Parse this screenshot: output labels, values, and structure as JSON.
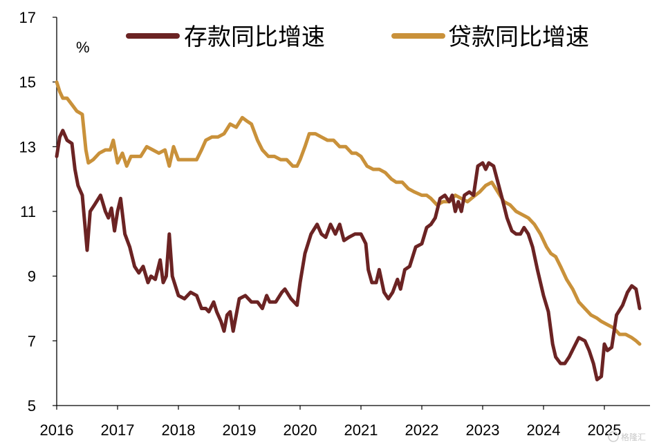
{
  "chart_data": {
    "type": "line",
    "unit": "%",
    "ylim": [
      5,
      17
    ],
    "yticks": [
      5,
      7,
      9,
      11,
      13,
      15,
      17
    ],
    "xlim": [
      2016.0,
      2025.75
    ],
    "xticks": [
      2016,
      2017,
      2018,
      2019,
      2020,
      2021,
      2022,
      2023,
      2024,
      2025
    ],
    "xtick_labels": [
      "2016",
      "2017",
      "2018",
      "2019",
      "2020",
      "2021",
      "2022",
      "2023",
      "2024",
      "2025"
    ],
    "grid": false,
    "legend_position": "top",
    "series": [
      {
        "name": "存款同比增速",
        "color": "#6b2323",
        "points": [
          [
            2016.0,
            12.7
          ],
          [
            2016.05,
            13.3
          ],
          [
            2016.1,
            13.5
          ],
          [
            2016.17,
            13.2
          ],
          [
            2016.25,
            13.1
          ],
          [
            2016.3,
            12.3
          ],
          [
            2016.35,
            11.8
          ],
          [
            2016.42,
            11.5
          ],
          [
            2016.5,
            9.8
          ],
          [
            2016.55,
            11.0
          ],
          [
            2016.62,
            11.2
          ],
          [
            2016.72,
            11.5
          ],
          [
            2016.8,
            11.0
          ],
          [
            2016.85,
            10.8
          ],
          [
            2016.9,
            11.1
          ],
          [
            2016.95,
            10.4
          ],
          [
            2017.0,
            11.0
          ],
          [
            2017.05,
            11.4
          ],
          [
            2017.12,
            10.3
          ],
          [
            2017.2,
            9.9
          ],
          [
            2017.28,
            9.3
          ],
          [
            2017.35,
            9.1
          ],
          [
            2017.42,
            9.3
          ],
          [
            2017.5,
            8.8
          ],
          [
            2017.55,
            9.0
          ],
          [
            2017.62,
            8.9
          ],
          [
            2017.7,
            9.5
          ],
          [
            2017.75,
            8.8
          ],
          [
            2017.8,
            9.0
          ],
          [
            2017.85,
            10.3
          ],
          [
            2017.9,
            9.0
          ],
          [
            2018.0,
            8.4
          ],
          [
            2018.1,
            8.3
          ],
          [
            2018.2,
            8.5
          ],
          [
            2018.3,
            8.4
          ],
          [
            2018.38,
            8.0
          ],
          [
            2018.45,
            8.0
          ],
          [
            2018.5,
            7.9
          ],
          [
            2018.58,
            8.2
          ],
          [
            2018.63,
            7.9
          ],
          [
            2018.7,
            7.6
          ],
          [
            2018.75,
            7.3
          ],
          [
            2018.8,
            7.8
          ],
          [
            2018.85,
            7.9
          ],
          [
            2018.9,
            7.3
          ],
          [
            2018.95,
            7.8
          ],
          [
            2019.0,
            8.3
          ],
          [
            2019.1,
            8.4
          ],
          [
            2019.2,
            8.2
          ],
          [
            2019.3,
            8.2
          ],
          [
            2019.38,
            8.0
          ],
          [
            2019.45,
            8.4
          ],
          [
            2019.5,
            8.2
          ],
          [
            2019.6,
            8.2
          ],
          [
            2019.7,
            8.5
          ],
          [
            2019.75,
            8.6
          ],
          [
            2019.85,
            8.3
          ],
          [
            2019.95,
            8.1
          ],
          [
            2020.0,
            8.8
          ],
          [
            2020.08,
            9.7
          ],
          [
            2020.18,
            10.3
          ],
          [
            2020.28,
            10.6
          ],
          [
            2020.35,
            10.3
          ],
          [
            2020.42,
            10.2
          ],
          [
            2020.5,
            10.6
          ],
          [
            2020.58,
            10.3
          ],
          [
            2020.65,
            10.6
          ],
          [
            2020.72,
            10.1
          ],
          [
            2020.8,
            10.2
          ],
          [
            2020.9,
            10.3
          ],
          [
            2021.0,
            10.3
          ],
          [
            2021.08,
            10.0
          ],
          [
            2021.12,
            9.2
          ],
          [
            2021.18,
            8.8
          ],
          [
            2021.25,
            8.8
          ],
          [
            2021.3,
            9.2
          ],
          [
            2021.38,
            8.5
          ],
          [
            2021.45,
            8.3
          ],
          [
            2021.52,
            8.5
          ],
          [
            2021.6,
            8.9
          ],
          [
            2021.65,
            8.6
          ],
          [
            2021.72,
            9.2
          ],
          [
            2021.8,
            9.3
          ],
          [
            2021.9,
            9.9
          ],
          [
            2022.0,
            10.0
          ],
          [
            2022.08,
            10.5
          ],
          [
            2022.15,
            10.6
          ],
          [
            2022.22,
            10.8
          ],
          [
            2022.3,
            11.4
          ],
          [
            2022.38,
            11.5
          ],
          [
            2022.45,
            11.3
          ],
          [
            2022.5,
            11.5
          ],
          [
            2022.55,
            11.0
          ],
          [
            2022.6,
            11.3
          ],
          [
            2022.65,
            11.0
          ],
          [
            2022.7,
            11.5
          ],
          [
            2022.78,
            11.6
          ],
          [
            2022.85,
            11.5
          ],
          [
            2022.92,
            12.4
          ],
          [
            2023.0,
            12.5
          ],
          [
            2023.05,
            12.3
          ],
          [
            2023.1,
            12.5
          ],
          [
            2023.18,
            12.4
          ],
          [
            2023.25,
            11.9
          ],
          [
            2023.32,
            11.4
          ],
          [
            2023.4,
            10.8
          ],
          [
            2023.48,
            10.4
          ],
          [
            2023.55,
            10.3
          ],
          [
            2023.62,
            10.3
          ],
          [
            2023.68,
            10.5
          ],
          [
            2023.75,
            10.3
          ],
          [
            2023.82,
            9.9
          ],
          [
            2023.9,
            9.2
          ],
          [
            2024.0,
            8.4
          ],
          [
            2024.08,
            7.9
          ],
          [
            2024.15,
            6.9
          ],
          [
            2024.2,
            6.5
          ],
          [
            2024.28,
            6.3
          ],
          [
            2024.35,
            6.3
          ],
          [
            2024.42,
            6.5
          ],
          [
            2024.5,
            6.8
          ],
          [
            2024.58,
            7.1
          ],
          [
            2024.68,
            7.0
          ],
          [
            2024.75,
            6.7
          ],
          [
            2024.82,
            6.3
          ],
          [
            2024.88,
            5.8
          ],
          [
            2024.95,
            5.9
          ],
          [
            2025.0,
            6.9
          ],
          [
            2025.05,
            6.7
          ],
          [
            2025.12,
            6.8
          ],
          [
            2025.2,
            7.8
          ],
          [
            2025.3,
            8.1
          ],
          [
            2025.38,
            8.5
          ],
          [
            2025.45,
            8.7
          ],
          [
            2025.52,
            8.6
          ],
          [
            2025.58,
            8.0
          ]
        ]
      },
      {
        "name": "贷款同比增速",
        "color": "#c9913a",
        "points": [
          [
            2016.0,
            15.0
          ],
          [
            2016.05,
            14.7
          ],
          [
            2016.1,
            14.5
          ],
          [
            2016.17,
            14.5
          ],
          [
            2016.25,
            14.3
          ],
          [
            2016.33,
            14.1
          ],
          [
            2016.42,
            14.0
          ],
          [
            2016.48,
            12.9
          ],
          [
            2016.52,
            12.5
          ],
          [
            2016.6,
            12.6
          ],
          [
            2016.7,
            12.8
          ],
          [
            2016.8,
            12.9
          ],
          [
            2016.88,
            12.9
          ],
          [
            2016.93,
            13.2
          ],
          [
            2017.0,
            12.5
          ],
          [
            2017.08,
            12.8
          ],
          [
            2017.15,
            12.4
          ],
          [
            2017.22,
            12.7
          ],
          [
            2017.3,
            12.7
          ],
          [
            2017.38,
            12.7
          ],
          [
            2017.48,
            13.0
          ],
          [
            2017.58,
            12.9
          ],
          [
            2017.68,
            12.8
          ],
          [
            2017.78,
            12.9
          ],
          [
            2017.85,
            12.4
          ],
          [
            2017.92,
            13.0
          ],
          [
            2018.0,
            12.6
          ],
          [
            2018.1,
            12.6
          ],
          [
            2018.2,
            12.6
          ],
          [
            2018.3,
            12.6
          ],
          [
            2018.38,
            12.9
          ],
          [
            2018.45,
            13.2
          ],
          [
            2018.55,
            13.3
          ],
          [
            2018.65,
            13.3
          ],
          [
            2018.75,
            13.4
          ],
          [
            2018.85,
            13.7
          ],
          [
            2018.95,
            13.6
          ],
          [
            2019.05,
            13.9
          ],
          [
            2019.12,
            13.8
          ],
          [
            2019.2,
            13.7
          ],
          [
            2019.3,
            13.2
          ],
          [
            2019.38,
            12.9
          ],
          [
            2019.48,
            12.7
          ],
          [
            2019.58,
            12.7
          ],
          [
            2019.68,
            12.6
          ],
          [
            2019.78,
            12.6
          ],
          [
            2019.88,
            12.4
          ],
          [
            2019.95,
            12.4
          ],
          [
            2020.0,
            12.6
          ],
          [
            2020.08,
            13.0
          ],
          [
            2020.15,
            13.4
          ],
          [
            2020.25,
            13.4
          ],
          [
            2020.35,
            13.3
          ],
          [
            2020.45,
            13.2
          ],
          [
            2020.55,
            13.2
          ],
          [
            2020.65,
            13.0
          ],
          [
            2020.75,
            13.0
          ],
          [
            2020.85,
            12.8
          ],
          [
            2020.92,
            12.8
          ],
          [
            2021.0,
            12.7
          ],
          [
            2021.1,
            12.4
          ],
          [
            2021.2,
            12.3
          ],
          [
            2021.3,
            12.3
          ],
          [
            2021.4,
            12.2
          ],
          [
            2021.5,
            12.0
          ],
          [
            2021.58,
            11.9
          ],
          [
            2021.68,
            11.9
          ],
          [
            2021.78,
            11.7
          ],
          [
            2021.88,
            11.6
          ],
          [
            2022.0,
            11.5
          ],
          [
            2022.08,
            11.5
          ],
          [
            2022.15,
            11.4
          ],
          [
            2022.25,
            11.2
          ],
          [
            2022.35,
            11.3
          ],
          [
            2022.45,
            11.3
          ],
          [
            2022.55,
            11.5
          ],
          [
            2022.65,
            11.4
          ],
          [
            2022.75,
            11.3
          ],
          [
            2022.88,
            11.5
          ],
          [
            2022.95,
            11.6
          ],
          [
            2023.05,
            11.8
          ],
          [
            2023.15,
            11.9
          ],
          [
            2023.25,
            11.6
          ],
          [
            2023.35,
            11.3
          ],
          [
            2023.45,
            11.2
          ],
          [
            2023.55,
            11.0
          ],
          [
            2023.65,
            10.9
          ],
          [
            2023.75,
            10.8
          ],
          [
            2023.85,
            10.6
          ],
          [
            2023.95,
            10.3
          ],
          [
            2024.05,
            9.9
          ],
          [
            2024.12,
            9.7
          ],
          [
            2024.2,
            9.6
          ],
          [
            2024.28,
            9.3
          ],
          [
            2024.38,
            8.9
          ],
          [
            2024.48,
            8.6
          ],
          [
            2024.58,
            8.2
          ],
          [
            2024.68,
            8.0
          ],
          [
            2024.78,
            7.8
          ],
          [
            2024.88,
            7.7
          ],
          [
            2024.95,
            7.6
          ],
          [
            2025.05,
            7.5
          ],
          [
            2025.15,
            7.4
          ],
          [
            2025.25,
            7.2
          ],
          [
            2025.35,
            7.2
          ],
          [
            2025.45,
            7.1
          ],
          [
            2025.52,
            7.0
          ],
          [
            2025.58,
            6.9
          ]
        ]
      }
    ]
  },
  "watermark": "格隆汇"
}
